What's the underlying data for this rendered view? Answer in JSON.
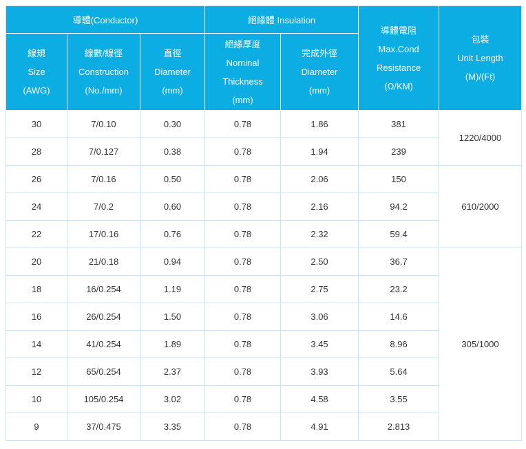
{
  "table": {
    "header": {
      "conductor_group": "導體(Conductor)",
      "insulation_group": "絕緣體 Insulation",
      "size_lines": [
        "線規",
        "Size",
        "(AWG)"
      ],
      "construction_lines": [
        "線數/線徑",
        "Construction",
        "(No./mm)"
      ],
      "diameter_lines": [
        "直徑",
        "Diameter",
        "(mm)"
      ],
      "thickness_lines": [
        "絕緣厚度",
        "Nominal",
        "Thickness",
        "(mm)"
      ],
      "outer_diameter_lines": [
        "完成外徑",
        "Diameter",
        "(mm)"
      ],
      "resistance_lines": [
        "導體電阻",
        "Max.Cond",
        "Resistance",
        "(Ω/KM)"
      ],
      "unit_length_lines": [
        "包裝",
        "Unit Length",
        "(M)/(Ft)"
      ]
    },
    "rows": [
      {
        "size": "30",
        "construction": "7/0.10",
        "diameter": "0.30",
        "thickness": "0.78",
        "outer_diameter": "1.86",
        "resistance": "381"
      },
      {
        "size": "28",
        "construction": "7/0.127",
        "diameter": "0.38",
        "thickness": "0.78",
        "outer_diameter": "1.94",
        "resistance": "239"
      },
      {
        "size": "26",
        "construction": "7/0.16",
        "diameter": "0.50",
        "thickness": "0.78",
        "outer_diameter": "2.06",
        "resistance": "150"
      },
      {
        "size": "24",
        "construction": "7/0.2",
        "diameter": "0.60",
        "thickness": "0.78",
        "outer_diameter": "2.16",
        "resistance": "94.2"
      },
      {
        "size": "22",
        "construction": "17/0.16",
        "diameter": "0.76",
        "thickness": "0.78",
        "outer_diameter": "2.32",
        "resistance": "59.4"
      },
      {
        "size": "20",
        "construction": "21/0.18",
        "diameter": "0.94",
        "thickness": "0.78",
        "outer_diameter": "2.50",
        "resistance": "36.7"
      },
      {
        "size": "18",
        "construction": "16/0.254",
        "diameter": "1.19",
        "thickness": "0.78",
        "outer_diameter": "2.75",
        "resistance": "23.2"
      },
      {
        "size": "16",
        "construction": "26/0.254",
        "diameter": "1.50",
        "thickness": "0.78",
        "outer_diameter": "3.06",
        "resistance": "14.6"
      },
      {
        "size": "14",
        "construction": "41/0.254",
        "diameter": "1.89",
        "thickness": "0.78",
        "outer_diameter": "3.45",
        "resistance": "8.96"
      },
      {
        "size": "12",
        "construction": "65/0.254",
        "diameter": "2.37",
        "thickness": "0.78",
        "outer_diameter": "3.93",
        "resistance": "5.64"
      },
      {
        "size": "10",
        "construction": "105/0.254",
        "diameter": "3.02",
        "thickness": "0.78",
        "outer_diameter": "4.58",
        "resistance": "3.55"
      },
      {
        "size": "9",
        "construction": "37/0.475",
        "diameter": "3.35",
        "thickness": "0.78",
        "outer_diameter": "4.91",
        "resistance": "2.813"
      }
    ],
    "unit_lengths": [
      {
        "label": "1220/4000",
        "span": 2
      },
      {
        "label": "610/2000",
        "span": 3
      },
      {
        "label": "305/1000",
        "span": 7
      }
    ]
  },
  "colors": {
    "header_bg": "#0bade3",
    "header_text": "#ffffff",
    "grid_border": "#c9e3f0",
    "body_text": "#333333"
  }
}
